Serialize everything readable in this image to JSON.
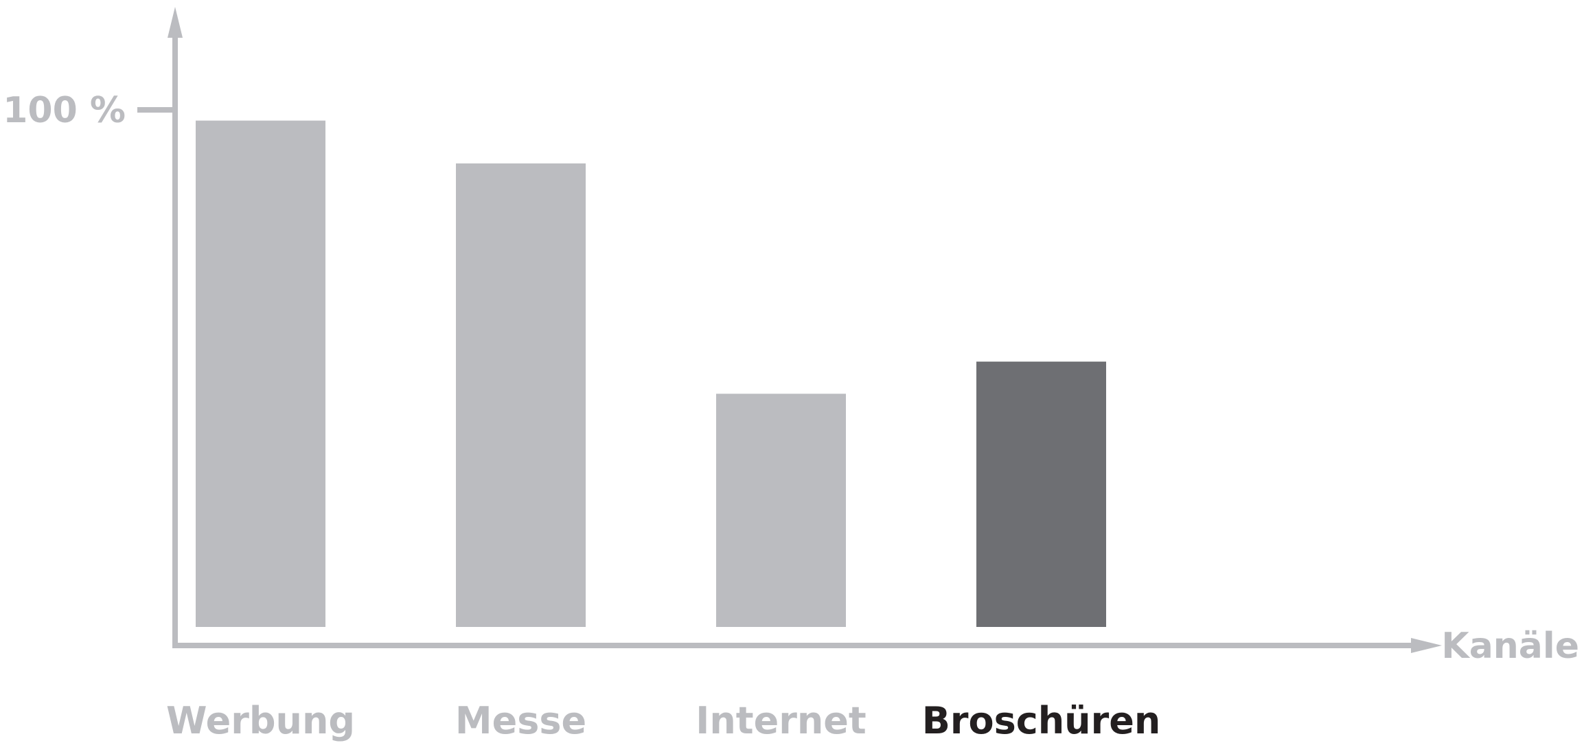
{
  "chart_data": {
    "type": "bar",
    "categories": [
      "Werbung",
      "Messe",
      "Internet",
      "Broschüren"
    ],
    "values": [
      98,
      90,
      47,
      53
    ],
    "highlight_index": 3,
    "ylim": [
      0,
      100
    ],
    "ytick_label": "100 %",
    "xlabel": "Kanäle",
    "ylabel": "",
    "title": "",
    "colors": {
      "bar": "#bbbcc0",
      "bar_highlight": "#6e6f73",
      "axis": "#bbbcc0",
      "label": "#bbbcc0",
      "label_highlight": "#231f20"
    }
  }
}
